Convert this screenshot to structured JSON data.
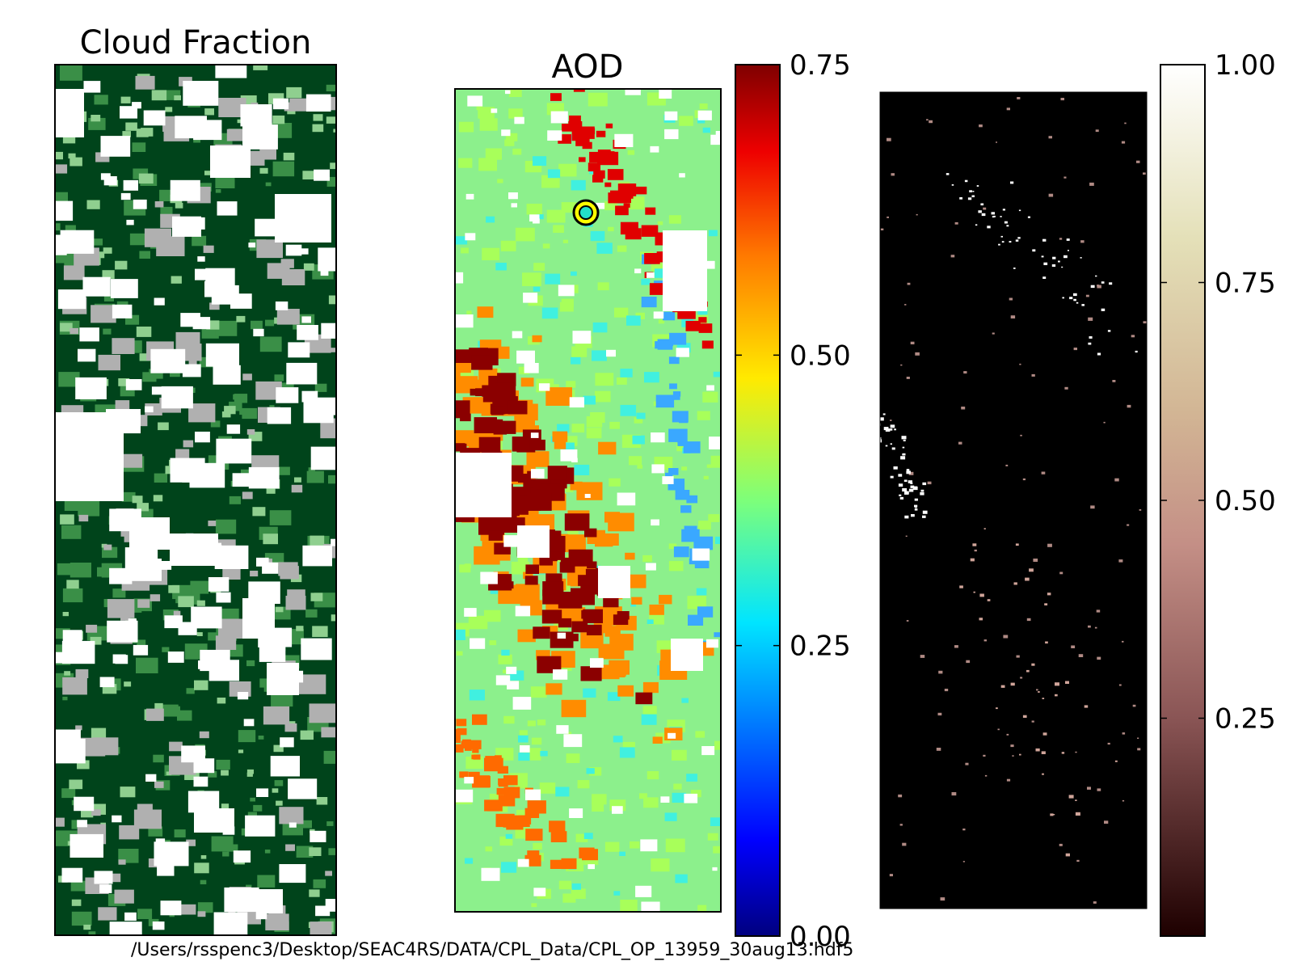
{
  "figure": {
    "footer_path": "/Users/rsspenc3/Desktop/SEAC4RS/DATA/CPL_Data/CPL_OP_13959_30aug13.hdf5"
  },
  "chart_data": [
    {
      "type": "heatmap",
      "title": "Cloud Fraction",
      "colormap": "greens",
      "colors": {
        "cloud_dark": "#00441b",
        "mid": "#2e8b3e",
        "light": "#8fcf8f",
        "edge": "#b0b0b0",
        "clear": "#ffffff"
      },
      "grid": false
    },
    {
      "type": "heatmap",
      "title": "AOD",
      "colormap": "jet",
      "colorbar": {
        "ticks": [
          "0.00",
          "0.25",
          "0.50",
          "0.75"
        ],
        "range": [
          0,
          0.75
        ]
      },
      "marker": {
        "description": "aircraft location",
        "color": "#22e0c8",
        "ring_color": "#ffff00"
      },
      "grid": false
    },
    {
      "type": "heatmap",
      "title": "",
      "colormap": "pink",
      "colorbar": {
        "ticks": [
          "0.25",
          "0.50",
          "0.75",
          "1.00"
        ],
        "range": [
          0,
          1
        ]
      },
      "grid": false
    }
  ]
}
